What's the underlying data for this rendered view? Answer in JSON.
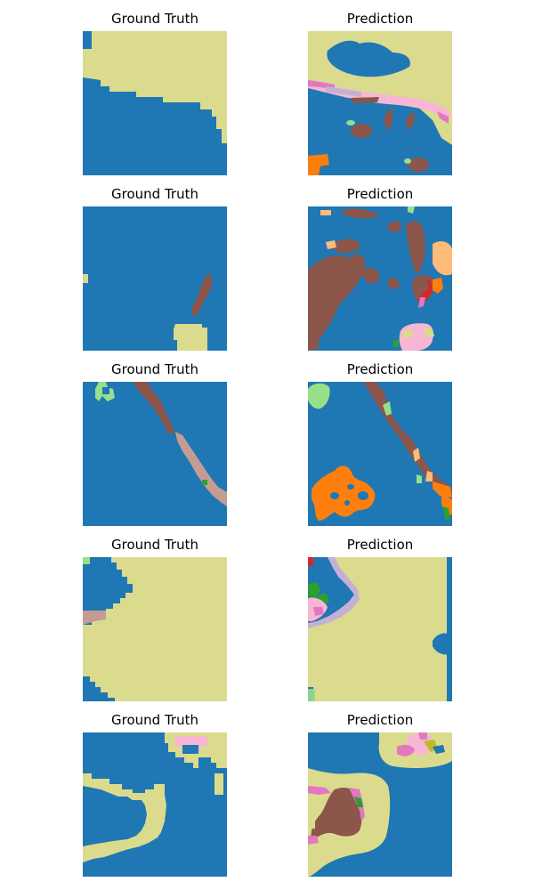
{
  "colors": {
    "blue": "#1f77b4",
    "khaki": "#dbdb8d",
    "brown": "#8c564b",
    "orange": "#ff7f0e",
    "light_orange": "#ffbb78",
    "light_green": "#98df8a",
    "green": "#2ca02c",
    "red": "#d62728",
    "pink": "#e377c2",
    "light_pink": "#f7b6d2",
    "lavender": "#c5b0d5",
    "rosy_brown": "#c49c94",
    "olive": "#bcbd22"
  },
  "rows": [
    {
      "gt_title": "Ground Truth",
      "pred_title": "Prediction"
    },
    {
      "gt_title": "Ground Truth",
      "pred_title": "Prediction"
    },
    {
      "gt_title": "Ground Truth",
      "pred_title": "Prediction"
    },
    {
      "gt_title": "Ground Truth",
      "pred_title": "Prediction"
    },
    {
      "gt_title": "Ground Truth",
      "pred_title": "Prediction"
    }
  ]
}
